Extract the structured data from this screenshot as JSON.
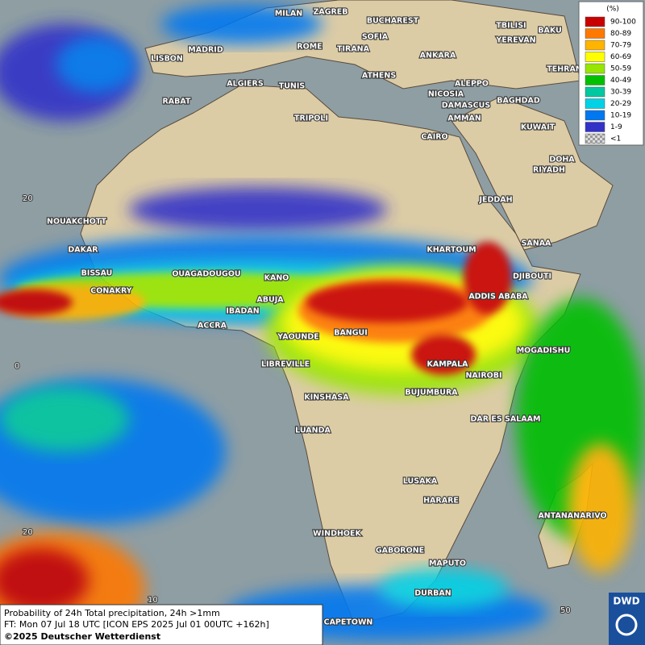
{
  "legend": {
    "unit": "(%)",
    "labels": [
      "90-100",
      "80-89",
      "70-79",
      "60-69",
      "50-59",
      "40-49",
      "30-39",
      "20-29",
      "10-19",
      "1-9",
      "<1"
    ],
    "colors": [
      "#c80000",
      "#ff7800",
      "#ffb400",
      "#ffff00",
      "#96e600",
      "#00c000",
      "#00c8a0",
      "#00d2e6",
      "#0078f0",
      "#3232c8",
      "#b4b4b4"
    ]
  },
  "cities": [
    "MILAN",
    "ZAGREB",
    "BUCHAREST",
    "SOFIA",
    "TBILISI",
    "BAKU",
    "YEREVAN",
    "MADRID",
    "ROME",
    "TIRANA",
    "ANKARA",
    "LISBON",
    "TEHRAN",
    "ATHENS",
    "ALGIERS",
    "TUNIS",
    "ALEPPO",
    "RABAT",
    "NICOSIA",
    "BAGHDAD",
    "DAMASCUS",
    "TRIPOLI",
    "AMMAN",
    "KUWAIT",
    "CAIRO",
    "DOHA",
    "RIYADH",
    "JEDDAH",
    "NOUAKCHOTT",
    "SANAA",
    "DAKAR",
    "KHARTOUM",
    "BISSAU",
    "OUAGADOUGOU",
    "KANO",
    "DJIBOUTI",
    "CONAKRY",
    "ABUJA",
    "ADDIS ABABA",
    "IBADAN",
    "ACCRA",
    "YAOUNDE",
    "BANGUI",
    "MOGADISHU",
    "LIBREVILLE",
    "KAMPALA",
    "NAIROBI",
    "BUJUMBURA",
    "KINSHASA",
    "DAR ES SALAAM",
    "LUANDA",
    "LUSAKA",
    "HARARE",
    "ANTANANARIVO",
    "WINDHOEK",
    "GABORONE",
    "MAPUTO",
    "DURBAN",
    "CAPETOWN"
  ],
  "grid_labels": [
    "20",
    "0",
    "20",
    "10",
    "50"
  ],
  "info": {
    "line1": "Probability of 24h Total precipitation, 24h >1mm",
    "line2": "FT: Mon 07 Jul 18 UTC [ICON EPS 2025 Jul 01 00UTC +162h]",
    "line3": "©2025 Deutscher Wetterdienst"
  },
  "logo": "DWD"
}
